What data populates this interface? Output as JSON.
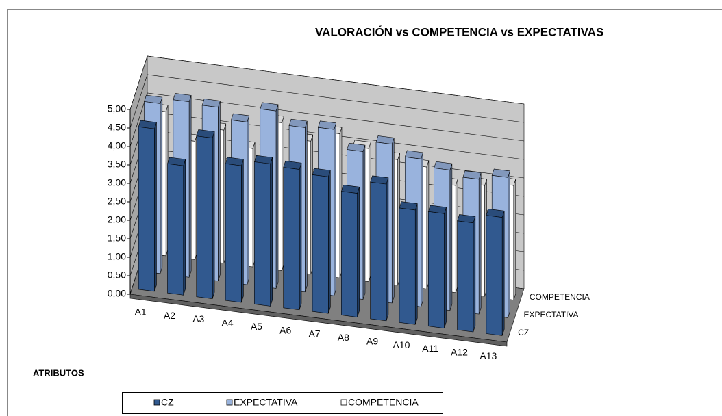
{
  "chart_data": {
    "type": "bar3d",
    "title": "VALORACIÓN vs COMPETENCIA vs EXPECTATIVAS",
    "x_label": "ATRIBUTOS",
    "categories": [
      "A1",
      "A2",
      "A3",
      "A4",
      "A5",
      "A6",
      "A7",
      "A8",
      "A9",
      "A10",
      "A11",
      "A12",
      "A13"
    ],
    "series": [
      {
        "name": "CZ",
        "color": "#31598f",
        "values": [
          4.4,
          3.5,
          4.35,
          3.7,
          3.85,
          3.8,
          3.7,
          3.35,
          3.7,
          3.1,
          3.1,
          2.95,
          3.2
        ]
      },
      {
        "name": "EXPECTATIVA",
        "color": "#99b3dd",
        "values": [
          4.6,
          4.75,
          4.7,
          4.4,
          4.8,
          4.45,
          4.5,
          4.0,
          4.3,
          4.0,
          3.8,
          3.65,
          3.8
        ]
      },
      {
        "name": "COMPETENCIA",
        "color": "#ffffff",
        "values": [
          3.9,
          3.2,
          3.6,
          3.2,
          4.0,
          3.6,
          3.9,
          3.6,
          3.4,
          3.3,
          2.9,
          3.0,
          3.1
        ]
      }
    ],
    "ylim": [
      0,
      5
    ],
    "yticks": [
      {
        "value": 0,
        "label": "0,00"
      },
      {
        "value": 0.5,
        "label": "0,50"
      },
      {
        "value": 1,
        "label": "1,00"
      },
      {
        "value": 1.5,
        "label": "1,50"
      },
      {
        "value": 2,
        "label": "2,00"
      },
      {
        "value": 2.5,
        "label": "2,50"
      },
      {
        "value": 3,
        "label": "3,00"
      },
      {
        "value": 3.5,
        "label": "3,50"
      },
      {
        "value": 4,
        "label": "4,00"
      },
      {
        "value": 4.5,
        "label": "4,50"
      },
      {
        "value": 5,
        "label": "5,00"
      }
    ],
    "grid": true,
    "legend": "bottom"
  }
}
